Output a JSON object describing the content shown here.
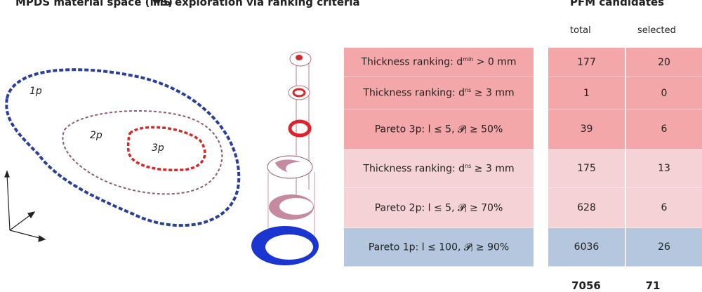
{
  "headers": {
    "material_space": "MPDS material space (MS)",
    "exploration": "MS exploration via ranking criteria",
    "candidates": "PFM candidates"
  },
  "columns": {
    "total": "total",
    "selected": "selected"
  },
  "regions": {
    "r1": "1p",
    "r2": "2p",
    "r3": "3p"
  },
  "colors": {
    "strong_red": "#f4a7a9",
    "light_pink": "#f5d2d5",
    "blue": "#b4c7de",
    "outline_1p": "#2a3f9a",
    "outline_2p": "#8f5a6e",
    "outline_3p": "#d42a2a"
  },
  "rows": [
    {
      "pre": "Thickness ranking: d",
      "sup": "min",
      "post": " > 0 mm",
      "total": "177",
      "selected": "20",
      "color": "#f4a7a9"
    },
    {
      "pre": "Thickness ranking: d",
      "sup": "ns",
      "post": " ≥ 3 mm",
      "total": "1",
      "selected": "0",
      "color": "#f4a7a9"
    },
    {
      "pre": "Pareto 3p: l ≤ 5, 𝓟",
      "sup": "",
      "post": "ⱼ ≥ 50%",
      "total": "39",
      "selected": "6",
      "color": "#f4a7a9"
    },
    {
      "pre": "Thickness ranking: d",
      "sup": "ns",
      "post": " ≥ 3 mm",
      "total": "175",
      "selected": "13",
      "color": "#f5d2d5"
    },
    {
      "pre": "Pareto 2p: l ≤ 5, 𝓟",
      "sup": "",
      "post": "ⱼ ≥ 70%",
      "total": "628",
      "selected": "6",
      "color": "#f5d2d5"
    },
    {
      "pre": "Pareto 1p: l ≤ 100, 𝓟",
      "sup": "",
      "post": "ⱼ ≥ 90%",
      "total": "6036",
      "selected": "26",
      "color": "#b4c7de"
    }
  ],
  "totals": {
    "total": "7056",
    "selected": "71"
  }
}
